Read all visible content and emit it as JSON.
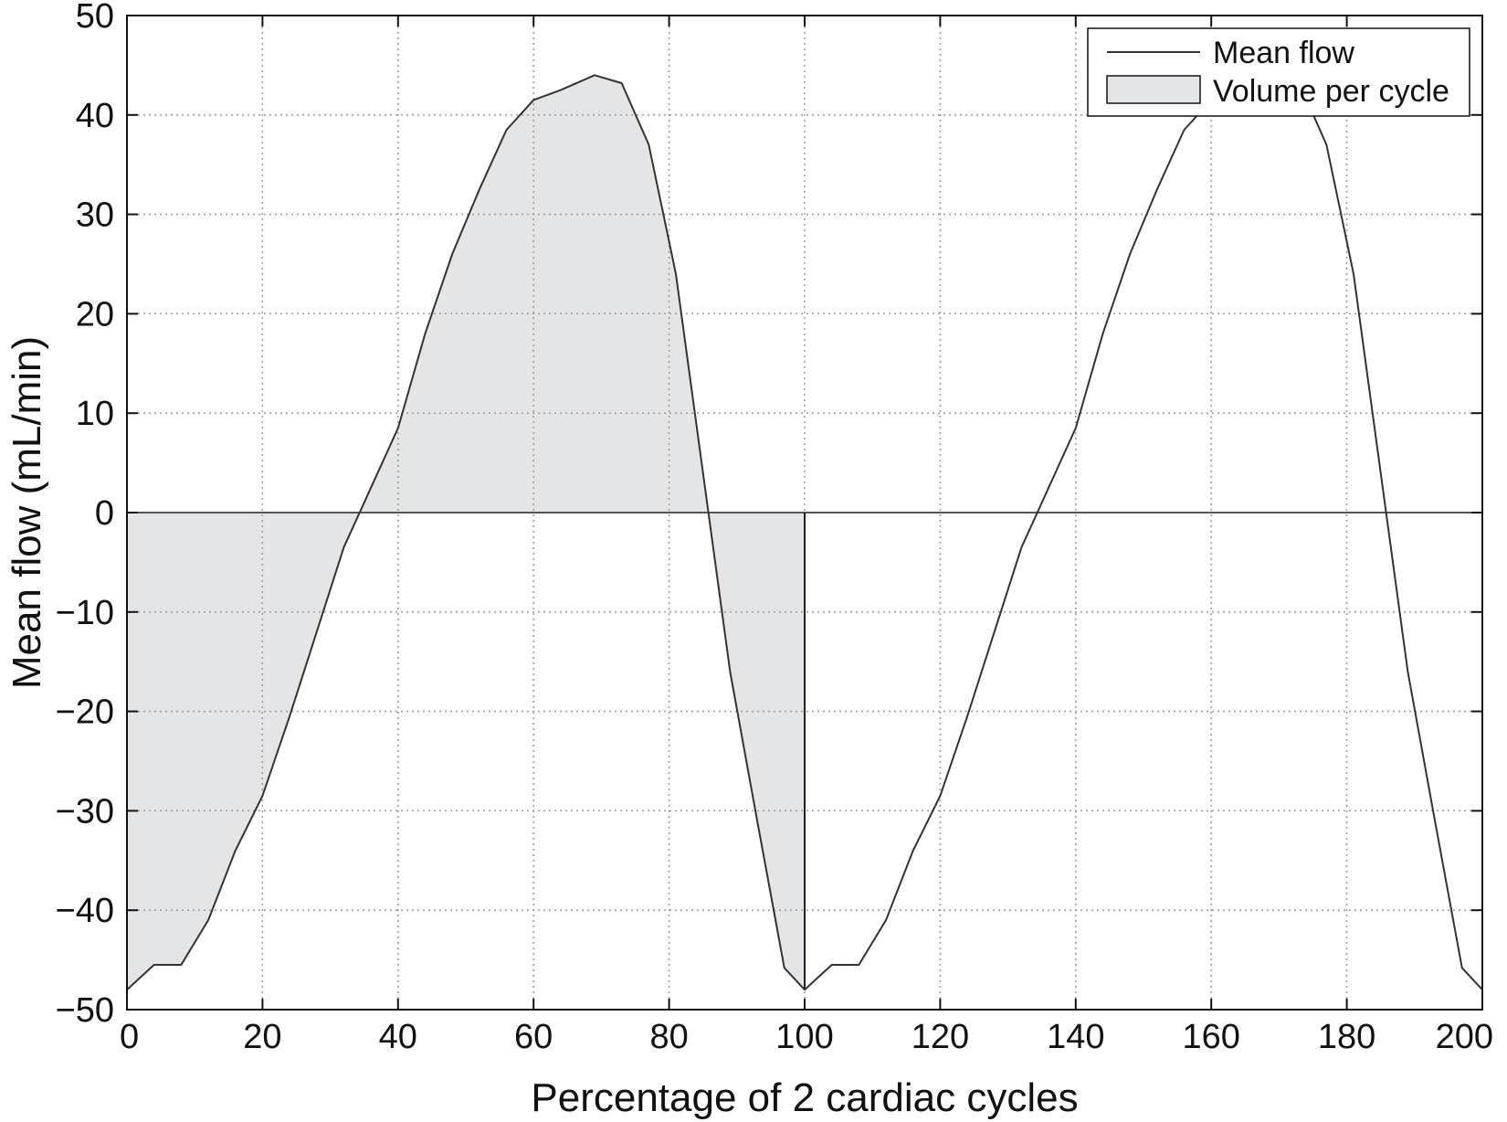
{
  "chart_data": {
    "type": "line",
    "xlabel": "Percentage of 2 cardiac cycles",
    "ylabel": "Mean flow (mL/min)",
    "xlim": [
      0,
      200
    ],
    "ylim": [
      -50,
      50
    ],
    "xticks": [
      0,
      20,
      40,
      60,
      80,
      100,
      120,
      140,
      160,
      180,
      200
    ],
    "yticks": [
      50,
      40,
      30,
      20,
      10,
      0,
      -10,
      -20,
      -30,
      -40,
      -50
    ],
    "xtick_labels": [
      "0",
      "20",
      "40",
      "60",
      "80",
      "100",
      "120",
      "140",
      "160",
      "180",
      "200"
    ],
    "ytick_labels": [
      "50",
      "40",
      "30",
      "20",
      "10",
      "0",
      "−10",
      "−20",
      "−30",
      "−40",
      "−50"
    ],
    "grid": true,
    "legend_position": "top-right",
    "series": [
      {
        "name": "Mean flow",
        "kind": "line",
        "color": "#333333",
        "x": [
          0,
          4,
          8,
          12,
          16,
          20,
          24,
          28,
          32,
          36,
          40,
          44,
          48,
          52,
          56,
          60,
          64,
          69,
          73,
          77,
          81,
          85,
          89,
          93,
          97,
          100,
          104,
          108,
          112,
          116,
          120,
          124,
          128,
          132,
          136,
          140,
          144,
          148,
          152,
          156,
          160,
          164,
          169,
          173,
          177,
          181,
          185,
          189,
          193,
          197,
          200
        ],
        "y": [
          -48,
          -45.5,
          -45.5,
          -41,
          -34,
          -28.5,
          -20.5,
          -12,
          -3.5,
          2.5,
          8.5,
          18,
          26,
          32.5,
          38.5,
          41.5,
          42.5,
          44,
          43.2,
          37,
          24,
          4,
          -16,
          -31,
          -45.8,
          -48,
          -45.5,
          -45.5,
          -41,
          -34,
          -28.5,
          -20.5,
          -12,
          -3.5,
          2.5,
          8.5,
          18,
          26,
          32.5,
          38.5,
          41.5,
          42.5,
          44,
          43.2,
          37,
          24,
          4,
          -16,
          -31,
          -45.8,
          -48
        ]
      },
      {
        "name": "Volume per cycle",
        "kind": "area",
        "color": "#e4e5e7",
        "x_range": [
          0,
          100
        ]
      }
    ]
  }
}
